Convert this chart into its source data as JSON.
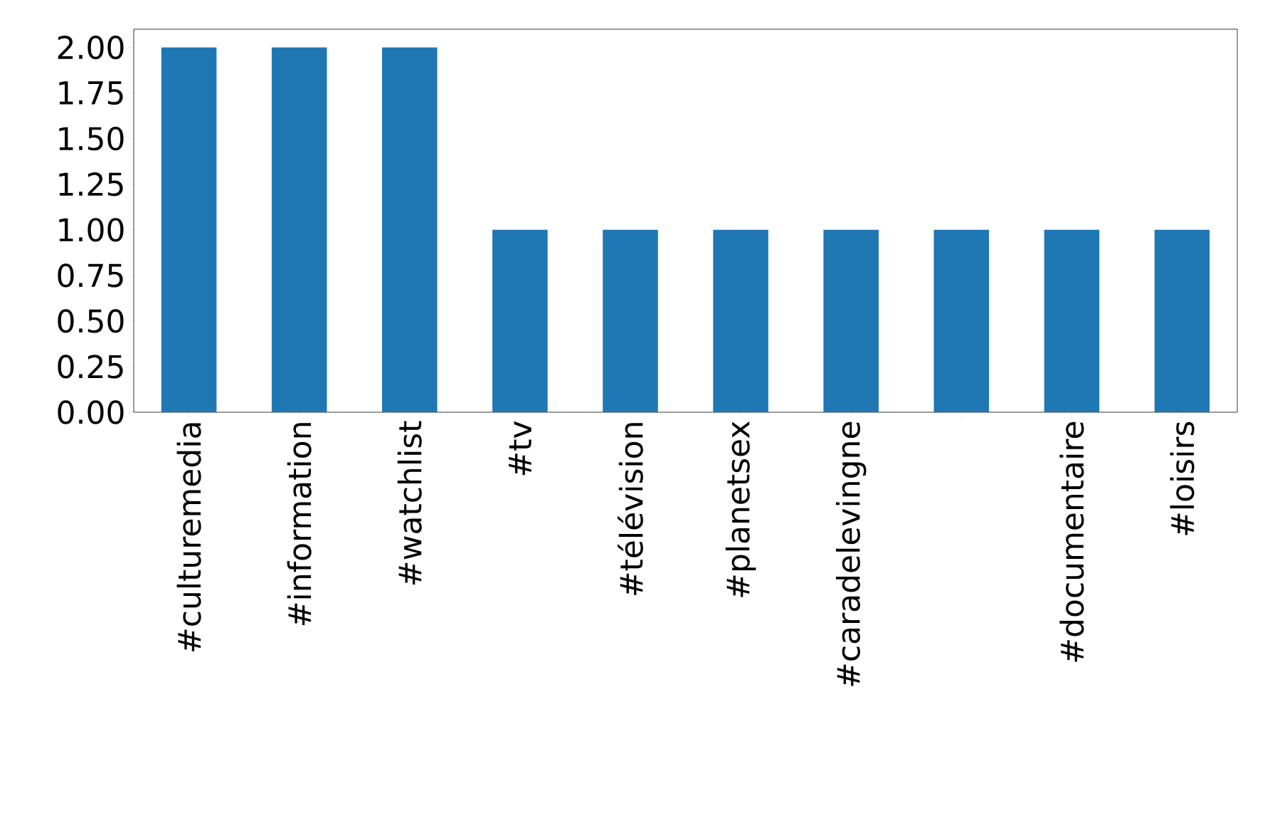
{
  "chart_data": {
    "type": "bar",
    "categories": [
      "#culturemedia",
      "#information",
      "#watchlist",
      "#tv",
      "#télévision",
      "#planetsex",
      "#caradelevingne",
      null,
      "#documentaire",
      "#loisirs"
    ],
    "values": [
      2,
      2,
      2,
      1,
      1,
      1,
      1,
      1,
      1,
      1
    ],
    "color": "#1f77b4",
    "ylim": [
      0,
      2.1
    ],
    "yticks": [
      {
        "value": 0,
        "label": "0.00"
      },
      {
        "value": 0.25,
        "label": "0.25"
      },
      {
        "value": 0.5,
        "label": "0.50"
      },
      {
        "value": 0.75,
        "label": "0.75"
      },
      {
        "value": 1,
        "label": "1.00"
      },
      {
        "value": 1.25,
        "label": "1.25"
      },
      {
        "value": 1.5,
        "label": "1.50"
      },
      {
        "value": 1.75,
        "label": "1.75"
      },
      {
        "value": 2,
        "label": "2.00"
      }
    ],
    "grid": false
  }
}
